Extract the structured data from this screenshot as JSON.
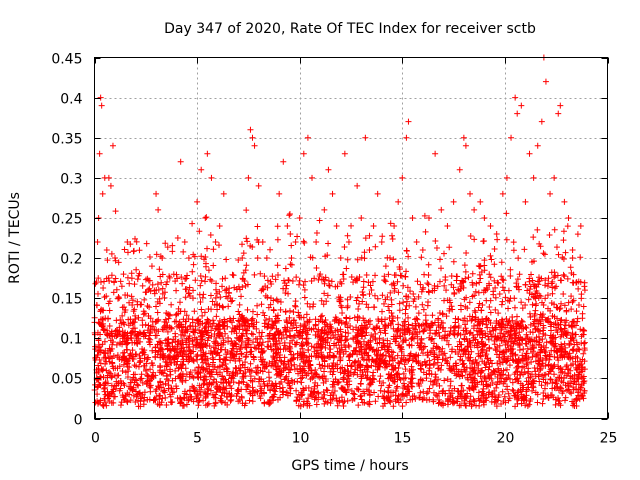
{
  "chart_data": {
    "type": "scatter",
    "title": "Day 347 of 2020, Rate Of TEC Index for receiver sctb",
    "xlabel": "GPS time / hours",
    "ylabel": "ROTI / TECUs",
    "xlim": [
      0,
      25
    ],
    "ylim": [
      0,
      0.45
    ],
    "x_ticks": [
      0,
      5,
      10,
      15,
      20,
      25
    ],
    "y_ticks": [
      0,
      0.05,
      0.1,
      0.15,
      0.2,
      0.25,
      0.3,
      0.35,
      0.4,
      0.45
    ],
    "x_tick_labels": [
      "0",
      "5",
      "10",
      "15",
      "20",
      "25"
    ],
    "y_tick_labels": [
      "0",
      "0.05",
      "0.1",
      "0.15",
      "0.2",
      "0.25",
      "0.3",
      "0.35",
      "0.4",
      "0.45"
    ],
    "grid": true,
    "marker": "+",
    "color": "#ff0000",
    "x_range_of_data": [
      0,
      23.9
    ],
    "points": [
      [
        0.05,
        0.02
      ],
      [
        0.1,
        0.17
      ],
      [
        0.15,
        0.22
      ],
      [
        0.2,
        0.25
      ],
      [
        0.25,
        0.33
      ],
      [
        0.3,
        0.4
      ],
      [
        0.35,
        0.39
      ],
      [
        0.4,
        0.28
      ],
      [
        0.5,
        0.3
      ],
      [
        0.6,
        0.21
      ],
      [
        0.7,
        0.3
      ],
      [
        0.8,
        0.29
      ],
      [
        0.9,
        0.34
      ],
      [
        1.0,
        0.2
      ],
      [
        1.2,
        0.15
      ],
      [
        1.4,
        0.12
      ],
      [
        1.6,
        0.22
      ],
      [
        1.8,
        0.1
      ],
      [
        2.0,
        0.08
      ],
      [
        2.2,
        0.07
      ],
      [
        2.4,
        0.13
      ],
      [
        2.6,
        0.11
      ],
      [
        2.8,
        0.19
      ],
      [
        3.0,
        0.28
      ],
      [
        3.1,
        0.26
      ],
      [
        3.3,
        0.2
      ],
      [
        3.5,
        0.12
      ],
      [
        3.8,
        0.09
      ],
      [
        4.0,
        0.13
      ],
      [
        4.2,
        0.32
      ],
      [
        4.4,
        0.22
      ],
      [
        4.6,
        0.2
      ],
      [
        4.8,
        0.15
      ],
      [
        5.0,
        0.27
      ],
      [
        5.2,
        0.31
      ],
      [
        5.4,
        0.25
      ],
      [
        5.5,
        0.33
      ],
      [
        5.7,
        0.3
      ],
      [
        5.9,
        0.22
      ],
      [
        6.1,
        0.24
      ],
      [
        6.3,
        0.28
      ],
      [
        6.5,
        0.15
      ],
      [
        6.7,
        0.12
      ],
      [
        6.9,
        0.08
      ],
      [
        7.2,
        0.2
      ],
      [
        7.5,
        0.3
      ],
      [
        7.6,
        0.36
      ],
      [
        7.7,
        0.35
      ],
      [
        7.8,
        0.34
      ],
      [
        8.0,
        0.29
      ],
      [
        8.2,
        0.22
      ],
      [
        8.4,
        0.2
      ],
      [
        8.6,
        0.15
      ],
      [
        8.8,
        0.12
      ],
      [
        9.0,
        0.28
      ],
      [
        9.2,
        0.32
      ],
      [
        9.4,
        0.24
      ],
      [
        9.6,
        0.2
      ],
      [
        9.8,
        0.22
      ],
      [
        10.0,
        0.25
      ],
      [
        10.2,
        0.33
      ],
      [
        10.4,
        0.35
      ],
      [
        10.6,
        0.3
      ],
      [
        10.8,
        0.22
      ],
      [
        11.0,
        0.18
      ],
      [
        11.2,
        0.26
      ],
      [
        11.4,
        0.31
      ],
      [
        11.6,
        0.28
      ],
      [
        11.8,
        0.24
      ],
      [
        12.0,
        0.2
      ],
      [
        12.2,
        0.33
      ],
      [
        12.4,
        0.22
      ],
      [
        12.6,
        0.17
      ],
      [
        12.8,
        0.29
      ],
      [
        13.0,
        0.25
      ],
      [
        13.2,
        0.35
      ],
      [
        13.4,
        0.21
      ],
      [
        13.6,
        0.24
      ],
      [
        13.8,
        0.28
      ],
      [
        14.0,
        0.22
      ],
      [
        14.2,
        0.19
      ],
      [
        14.4,
        0.2
      ],
      [
        14.6,
        0.24
      ],
      [
        14.8,
        0.27
      ],
      [
        15.0,
        0.3
      ],
      [
        15.2,
        0.35
      ],
      [
        15.3,
        0.37
      ],
      [
        15.5,
        0.25
      ],
      [
        15.7,
        0.22
      ],
      [
        16.0,
        0.21
      ],
      [
        16.3,
        0.25
      ],
      [
        16.6,
        0.33
      ],
      [
        16.9,
        0.26
      ],
      [
        17.2,
        0.24
      ],
      [
        17.5,
        0.27
      ],
      [
        17.8,
        0.31
      ],
      [
        18.0,
        0.35
      ],
      [
        18.1,
        0.34
      ],
      [
        18.3,
        0.28
      ],
      [
        18.5,
        0.26
      ],
      [
        18.8,
        0.27
      ],
      [
        19.0,
        0.25
      ],
      [
        19.3,
        0.24
      ],
      [
        19.6,
        0.23
      ],
      [
        19.9,
        0.28
      ],
      [
        20.1,
        0.3
      ],
      [
        20.3,
        0.35
      ],
      [
        20.5,
        0.4
      ],
      [
        20.6,
        0.38
      ],
      [
        20.8,
        0.39
      ],
      [
        21.0,
        0.27
      ],
      [
        21.2,
        0.33
      ],
      [
        21.4,
        0.3
      ],
      [
        21.6,
        0.34
      ],
      [
        21.8,
        0.37
      ],
      [
        21.9,
        0.45
      ],
      [
        22.0,
        0.42
      ],
      [
        22.2,
        0.28
      ],
      [
        22.4,
        0.3
      ],
      [
        22.6,
        0.38
      ],
      [
        22.7,
        0.39
      ],
      [
        22.9,
        0.27
      ],
      [
        23.1,
        0.25
      ],
      [
        23.3,
        0.2
      ],
      [
        23.5,
        0.17
      ],
      [
        23.7,
        0.24
      ],
      [
        23.9,
        0.16
      ]
    ]
  }
}
